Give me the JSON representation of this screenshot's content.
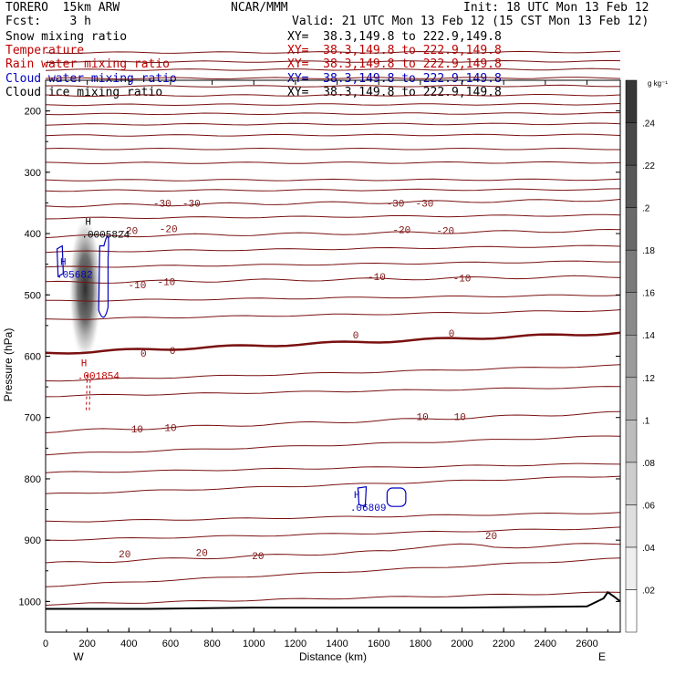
{
  "header": {
    "model": "TORERO  15km ARW",
    "org": "NCAR/MMM",
    "init": "Init: 18 UTC Mon 13 Feb 12",
    "fcst": "Fcst:    3 h",
    "valid": "Valid: 21 UTC Mon 13 Feb 12 (15 CST Mon 13 Feb 12)"
  },
  "fields": [
    {
      "name": "Snow mixing ratio",
      "xy": "XY=  38.3,149.8 to 222.9,149.8",
      "color": "#000000"
    },
    {
      "name": "Temperature",
      "xy": "XY=  38.3,149.8 to 222.9,149.8",
      "color": "#c00000"
    },
    {
      "name": "Rain water mixing ratio",
      "xy": "XY=  38.3,149.8 to 222.9,149.8",
      "color": "#c00000"
    },
    {
      "name": "Cloud water mixing ratio",
      "xy": "XY=  38.3,149.8 to 222.9,149.8",
      "color": "#0000c0"
    },
    {
      "name": "Cloud ice mixing ratio",
      "xy": "XY=  38.3,149.8 to 222.9,149.8",
      "color": "#000000"
    }
  ],
  "chart_data": {
    "type": "contour cross-section",
    "xlabel": "Distance (km)",
    "ylabel": "Pressure (hPa)",
    "xlim": [
      0,
      2760
    ],
    "ylim": [
      150,
      1050
    ],
    "xticks": [
      0,
      200,
      400,
      600,
      800,
      1000,
      1200,
      1400,
      1600,
      1800,
      2000,
      2200,
      2400,
      2600
    ],
    "yticks": [
      200,
      300,
      400,
      500,
      600,
      700,
      800,
      900,
      1000
    ],
    "x_end_labels": {
      "left": "W",
      "right": "E"
    },
    "colorbar": {
      "unit": "g kg⁻¹",
      "levels": [
        0.02,
        0.04,
        0.06,
        0.08,
        0.1,
        0.12,
        0.14,
        0.16,
        0.18,
        0.2,
        0.22,
        0.24
      ],
      "labels": [
        ".02",
        ".04",
        ".06",
        ".08",
        ".1",
        ".12",
        ".14",
        ".16",
        ".18",
        ".2",
        ".22",
        ".24"
      ]
    },
    "temperature_contours": [
      {
        "label": "-30",
        "pressure_left": 355,
        "pressure_right": 345,
        "label_positions": [
          {
            "x": 560,
            "p": 350,
            "text": "-30"
          },
          {
            "x": 700,
            "p": 350,
            "text": "-30"
          },
          {
            "x": 1680,
            "p": 350,
            "text": "-30"
          },
          {
            "x": 1820,
            "p": 350,
            "text": "-30"
          }
        ]
      },
      {
        "label": "-20",
        "pressure_left": 405,
        "pressure_right": 395,
        "label_positions": [
          {
            "x": 400,
            "p": 395,
            "text": "-20"
          },
          {
            "x": 590,
            "p": 392,
            "text": "-20"
          },
          {
            "x": 1710,
            "p": 393,
            "text": "-20"
          },
          {
            "x": 1920,
            "p": 395,
            "text": "-20"
          }
        ]
      },
      {
        "label": "-10",
        "pressure_left": 480,
        "pressure_right": 470,
        "label_positions": [
          {
            "x": 440,
            "p": 483,
            "text": "-10"
          },
          {
            "x": 580,
            "p": 478,
            "text": "-10"
          },
          {
            "x": 1590,
            "p": 470,
            "text": "-10"
          },
          {
            "x": 2000,
            "p": 472,
            "text": "-10"
          }
        ]
      },
      {
        "label": "0",
        "bold": true,
        "pressure_left": 595,
        "pressure_right": 562,
        "label_positions": [
          {
            "x": 470,
            "p": 595,
            "text": "0"
          },
          {
            "x": 610,
            "p": 590,
            "text": "0"
          },
          {
            "x": 1490,
            "p": 565,
            "text": "0"
          },
          {
            "x": 1950,
            "p": 562,
            "text": "0"
          }
        ]
      },
      {
        "label": "10",
        "pressure_left": 723,
        "pressure_right": 692,
        "label_positions": [
          {
            "x": 440,
            "p": 718,
            "text": "10"
          },
          {
            "x": 600,
            "p": 716,
            "text": "10"
          },
          {
            "x": 1810,
            "p": 698,
            "text": "10"
          },
          {
            "x": 1990,
            "p": 698,
            "text": "10"
          }
        ]
      },
      {
        "label": "20",
        "pressure_left": 938,
        "pressure_right": 905,
        "label_positions": [
          {
            "x": 380,
            "p": 922,
            "text": "20"
          },
          {
            "x": 750,
            "p": 920,
            "text": "20"
          },
          {
            "x": 1020,
            "p": 925,
            "text": "20"
          },
          {
            "x": 2140,
            "p": 892,
            "text": "20"
          }
        ]
      }
    ],
    "maxima": [
      {
        "field": "Cloud ice mixing ratio",
        "label": "H",
        "value": ".0005824",
        "x": 190,
        "p": 395
      },
      {
        "field": "Cloud water mixing ratio",
        "label": "H",
        "value": ".05682",
        "x": 70,
        "p": 460
      },
      {
        "field": "Rain water mixing ratio",
        "label": "H",
        "value": ".001854",
        "x": 170,
        "p": 625
      },
      {
        "field": "Cloud water mixing ratio",
        "label": "H",
        "value": ".06809",
        "x": 1480,
        "p": 840
      }
    ],
    "snow_max_location": {
      "x": 190,
      "p_top": 390,
      "p_bottom": 590,
      "value": 0.24
    },
    "terrain_surface_pressure": [
      [
        0,
        1012
      ],
      [
        500,
        1012
      ],
      [
        1000,
        1010
      ],
      [
        2000,
        1010
      ],
      [
        2600,
        1008
      ],
      [
        2680,
        995
      ],
      [
        2700,
        985
      ],
      [
        2730,
        992
      ],
      [
        2760,
        1000
      ]
    ]
  }
}
